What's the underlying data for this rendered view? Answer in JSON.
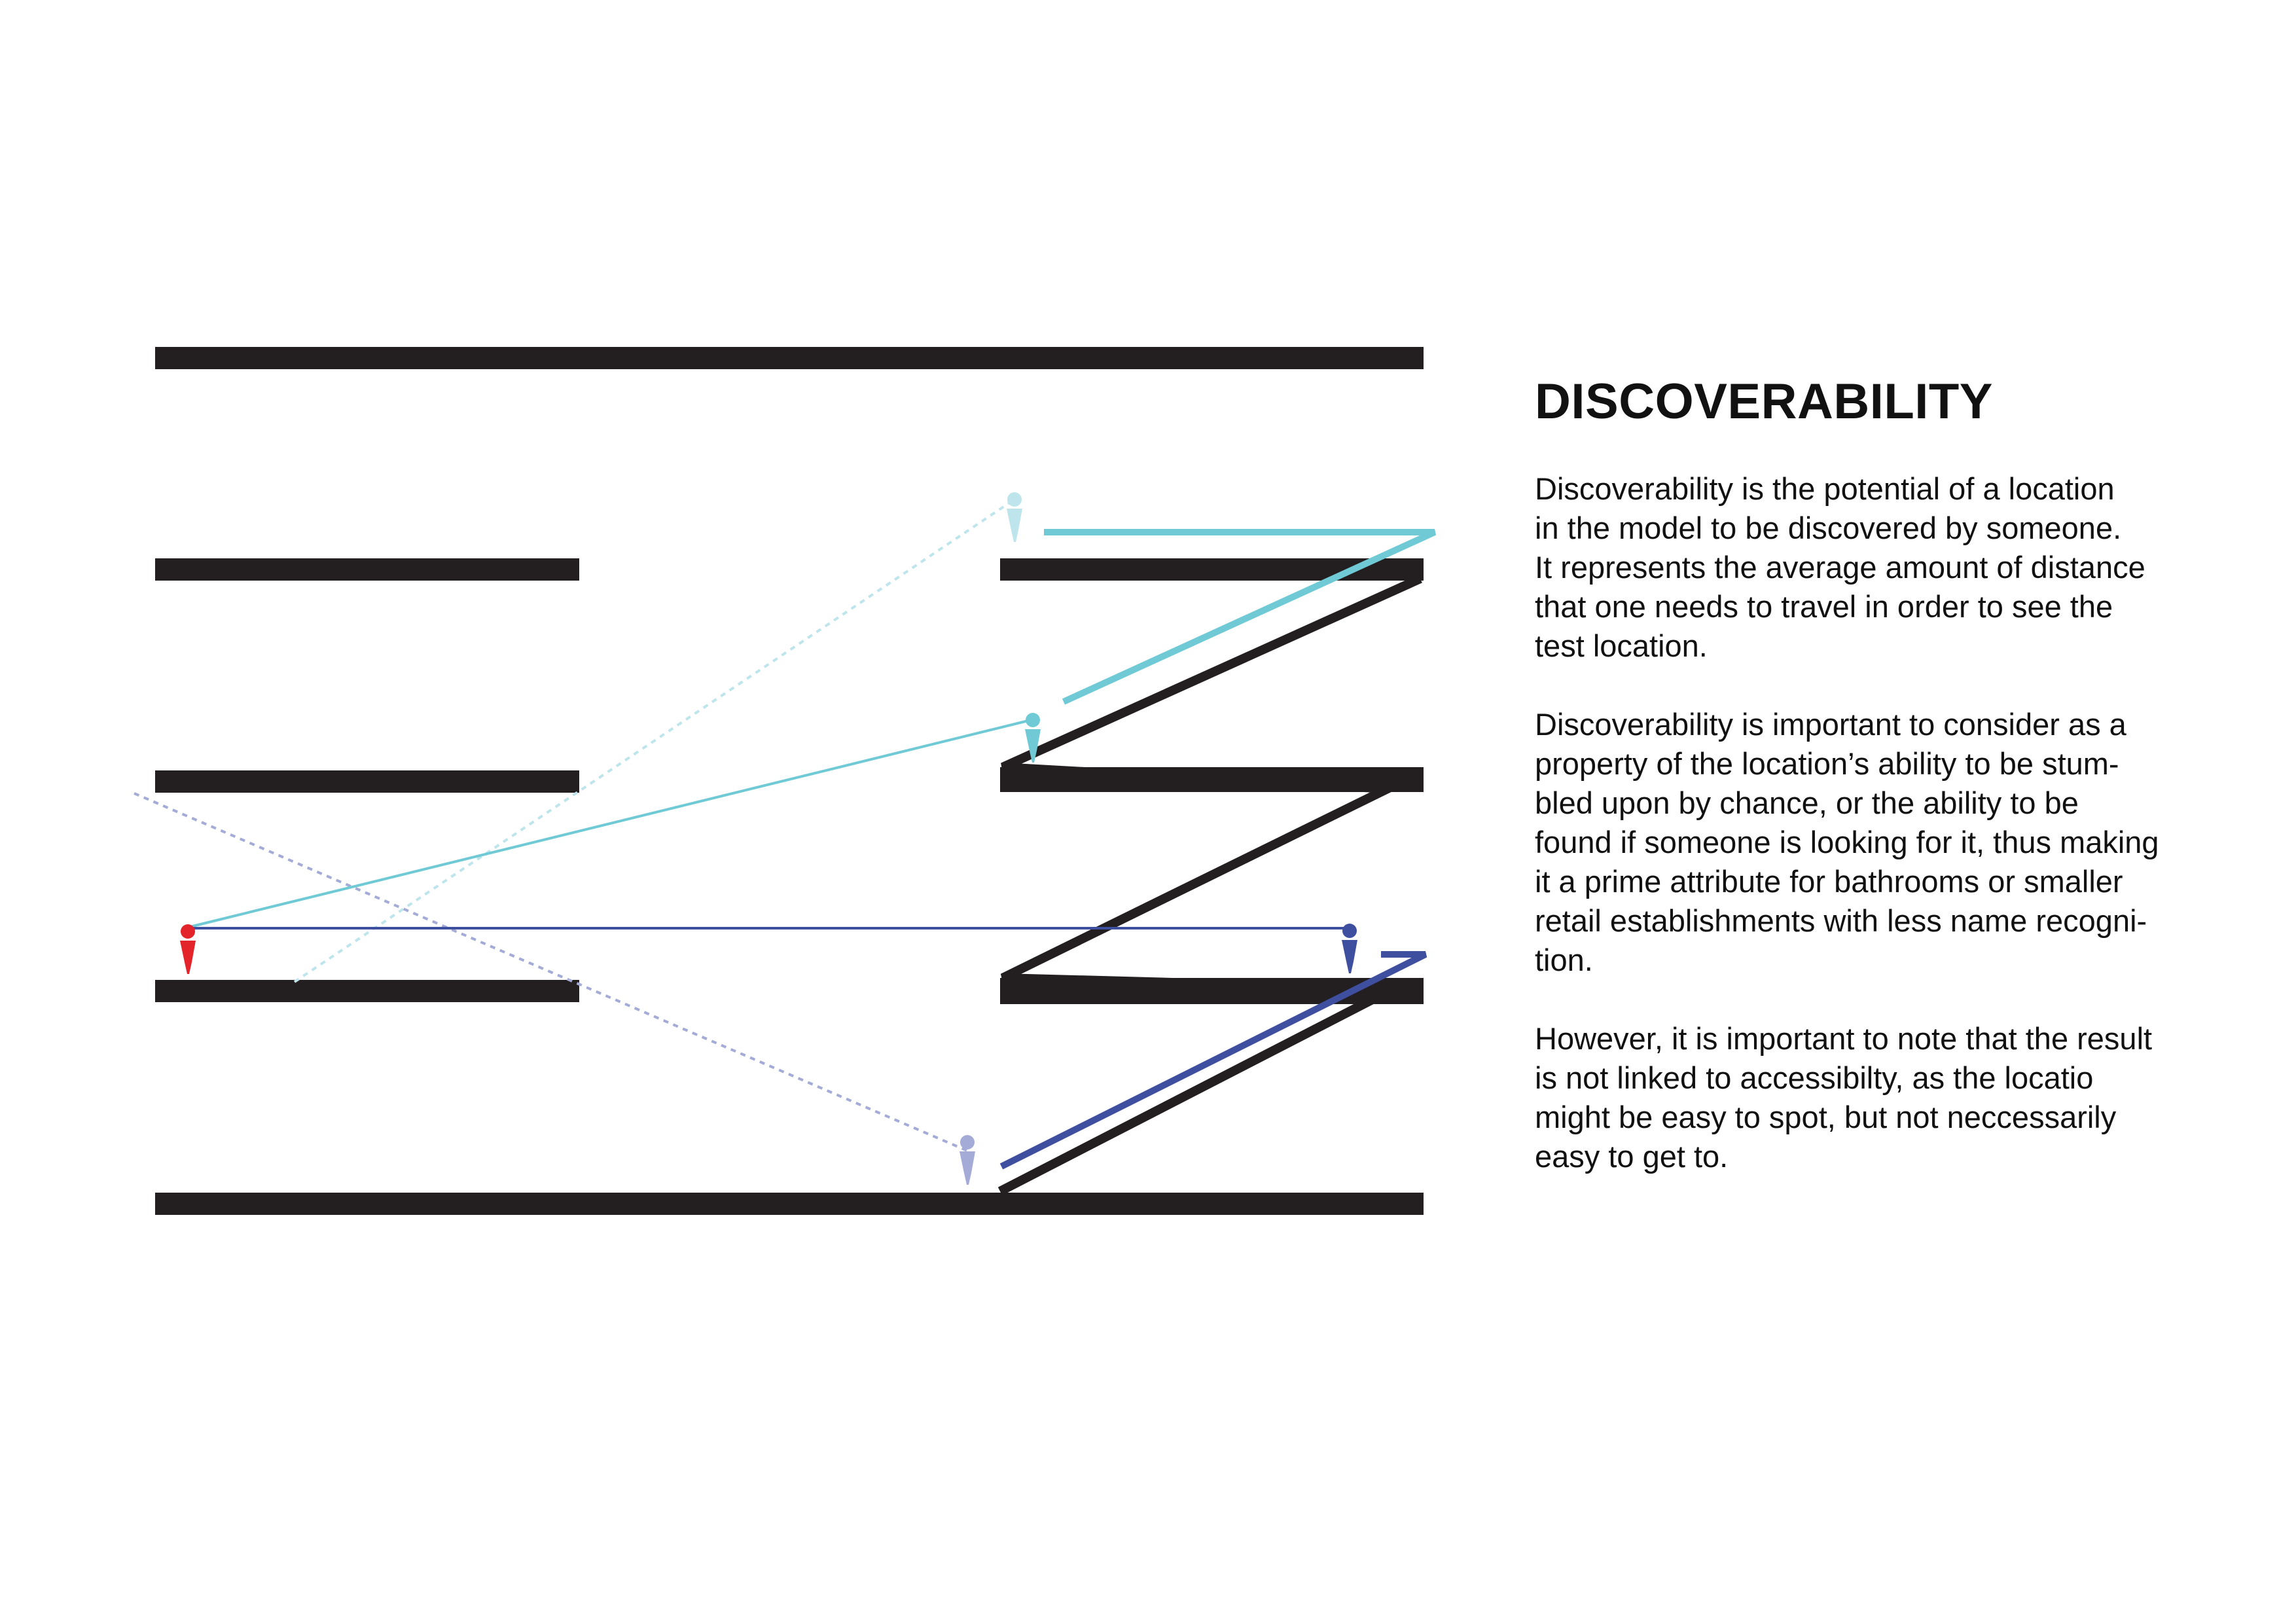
{
  "title": "DISCOVERABILITY",
  "paragraphs": [
    [
      "Discoverability is the potential of a location",
      "in the model to be discovered by someone.",
      "It represents the average amount of distance",
      "that one needs to travel in order to see the",
      "test location."
    ],
    [
      "Discoverability is important to consider as a",
      "property of the location’s ability to be stum-",
      "bled upon by chance, or the ability to be",
      "found if someone is looking for it, thus making",
      "it a prime attribute for bathrooms or smaller",
      "retail establishments with less name recogni-",
      "tion."
    ],
    [
      "However, it is important to note that the result",
      "is not linked to accessibilty, as the locatio",
      "might be easy to spot, but not neccessarily",
      "easy to get to."
    ]
  ],
  "colors": {
    "floor": "#231f20",
    "observer": "#e3242b",
    "light_cyan": "#bfe5ec",
    "cyan": "#6fcad5",
    "dark_blue": "#3f4fa0",
    "lavender": "#a3abd6",
    "ramp": "#231f20"
  }
}
